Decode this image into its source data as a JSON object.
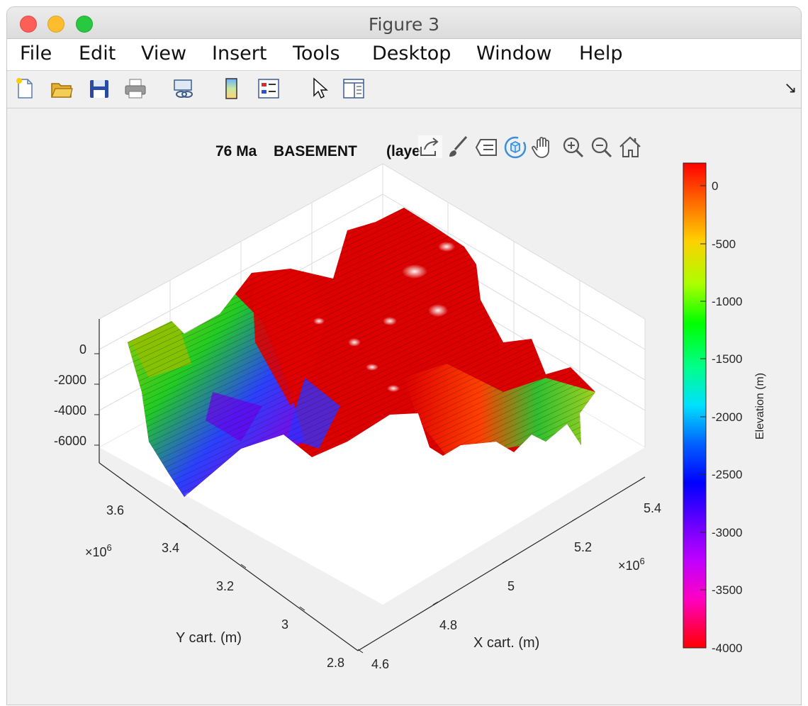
{
  "window": {
    "title": "Figure 3"
  },
  "menu": [
    "File",
    "Edit",
    "View",
    "Insert",
    "Tools",
    "Desktop",
    "Window",
    "Help"
  ],
  "toolbar": {
    "icons": [
      "new-figure-icon",
      "open-file-icon",
      "save-icon",
      "print-icon",
      "link-plot-icon",
      "insert-colorbar-icon",
      "insert-legend-icon",
      "edit-plot-icon",
      "property-inspector-icon"
    ],
    "corner_arrow": "↘"
  },
  "axes_toolbar": {
    "icons": [
      "export-icon",
      "brush-icon",
      "data-tips-icon",
      "rotate-3d-icon",
      "pan-icon",
      "zoom-in-icon",
      "zoom-out-icon",
      "home-icon"
    ]
  },
  "plot": {
    "title_part1": "76 Ma",
    "title_part2": "BASEMENT",
    "title_part3": "(laye",
    "zlabel_ticks": [
      "0",
      "-2000",
      "-4000",
      "-6000"
    ],
    "yticks": [
      "3.6",
      "3.4",
      "3.2",
      "3",
      "2.8"
    ],
    "y_exponent": "×10",
    "y_exp_power": "6",
    "ylabel": "Y cart. (m)",
    "xticks": [
      "4.6",
      "4.8",
      "5",
      "5.2",
      "5.4"
    ],
    "x_exponent": "×10",
    "x_exp_power": "6",
    "xlabel": "X cart. (m)"
  },
  "colorbar": {
    "label": "Elevation (m)",
    "ticks": [
      "0",
      "-500",
      "-1000",
      "-1500",
      "-2000",
      "-2500",
      "-3000",
      "-3500",
      "-4000"
    ],
    "colors": [
      "#ff0000",
      "#ff6a00",
      "#ffd000",
      "#aaff00",
      "#00ff00",
      "#00ff88",
      "#00e0ff",
      "#0060ff",
      "#0000ff",
      "#7000ff",
      "#c000ff",
      "#ff00c0",
      "#ff0060",
      "#ff0000"
    ]
  },
  "chart_data": {
    "type": "surface",
    "title": "76 Ma   BASEMENT   (laye",
    "xlabel": "X cart. (m)",
    "ylabel": "Y cart. (m)",
    "zlabel": "",
    "x_range": [
      4600000,
      5400000
    ],
    "y_range": [
      2800000,
      3600000
    ],
    "z_range": [
      -7000,
      1000
    ],
    "color_range": [
      -4000,
      0
    ],
    "colormap": "hsv",
    "colorbar_label": "Elevation (m)",
    "grid": true
  }
}
